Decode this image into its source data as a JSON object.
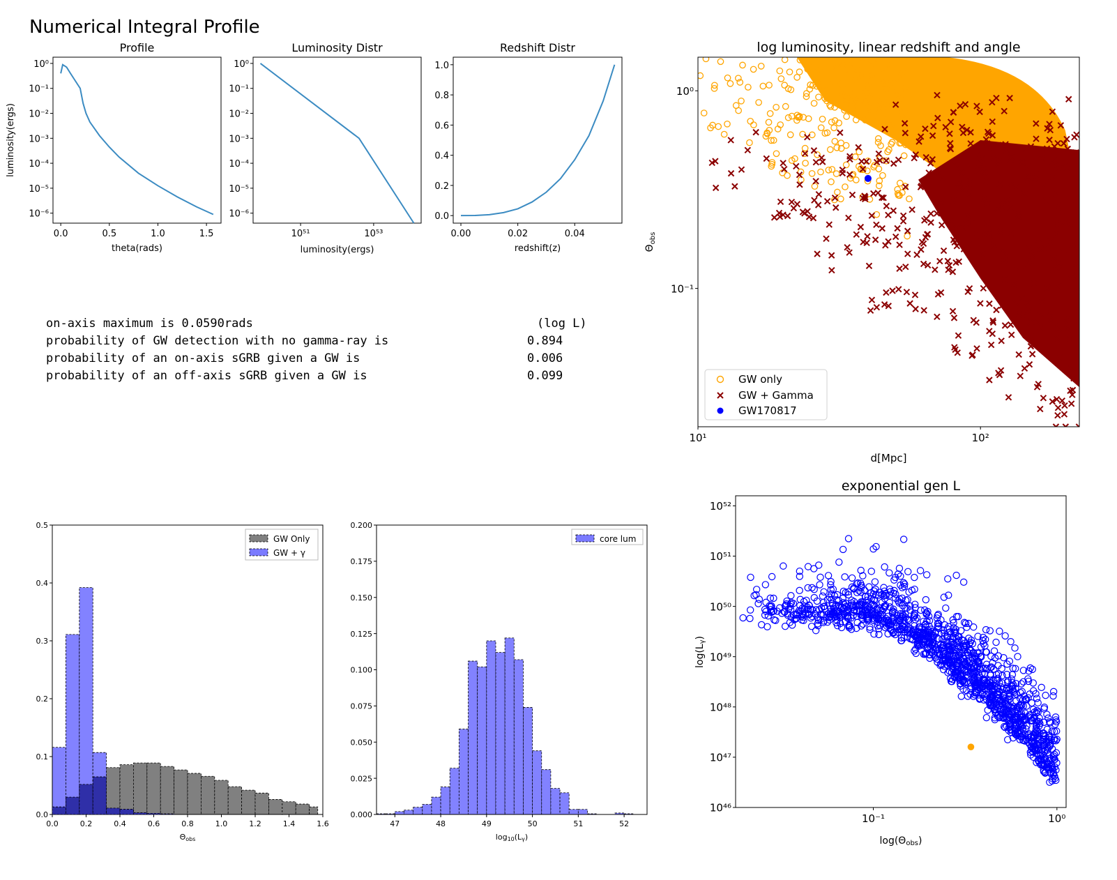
{
  "header": {
    "title": "Numerical Integral Profile"
  },
  "stats": {
    "unit_label": "(log L)",
    "lines": [
      {
        "text": "on-axis maximum is 0.0590rads",
        "value": ""
      },
      {
        "text": "probability of GW detection with no gamma-ray is",
        "value": "0.894"
      },
      {
        "text": "probability of an on-axis sGRB given a GW is",
        "value": "0.006"
      },
      {
        "text": "probability of an off-axis sGRB given a GW is",
        "value": "0.099"
      }
    ]
  },
  "colors": {
    "line": "#3b8bc2",
    "gw_only": "#ffa500",
    "gw_gamma": "#8b0000",
    "gw170817": "#0000ff",
    "hist_gray": "#808080",
    "hist_blue": "#7b7bff",
    "scatter_blue": "#0000ff",
    "marker_orange": "#ffa500"
  },
  "chart_data": [
    {
      "id": "profile",
      "type": "line",
      "title": "Profile",
      "xlabel": "theta(rads)",
      "ylabel": "luminosity(ergs)",
      "xlim": [
        -0.08,
        1.65
      ],
      "ylim_log10": [
        -6.4,
        0.25
      ],
      "yscale": "log",
      "xticks": [
        "0.0",
        "0.5",
        "1.0",
        "1.5"
      ],
      "yticks": [
        "10⁰",
        "10⁻¹",
        "10⁻²",
        "10⁻³",
        "10⁻⁴",
        "10⁻⁵",
        "10⁻⁶"
      ],
      "x": [
        0.0,
        0.02,
        0.06,
        0.1,
        0.15,
        0.2,
        0.23,
        0.26,
        0.3,
        0.4,
        0.5,
        0.6,
        0.8,
        1.0,
        1.2,
        1.4,
        1.57
      ],
      "y_log10": [
        -0.4,
        -0.05,
        -0.15,
        -0.4,
        -0.7,
        -1.0,
        -1.6,
        -2.0,
        -2.35,
        -2.9,
        -3.35,
        -3.75,
        -4.4,
        -4.9,
        -5.35,
        -5.75,
        -6.05
      ]
    },
    {
      "id": "lum",
      "type": "line",
      "title": "Luminosity Distr",
      "xlabel": "luminosity(ergs)",
      "ylabel": "",
      "xlim_log10": [
        49.7,
        54.3
      ],
      "ylim_log10": [
        -6.4,
        0.25
      ],
      "xscale": "log",
      "yscale": "log",
      "xticks": [
        "10⁵¹",
        "10⁵³"
      ],
      "yticks": [
        "10⁰",
        "10⁻¹",
        "10⁻²",
        "10⁻³",
        "10⁻⁴",
        "10⁻⁵",
        "10⁻⁶"
      ],
      "x_log10": [
        49.9,
        52.6,
        54.1
      ],
      "y_log10": [
        0.0,
        -3.0,
        -6.4
      ]
    },
    {
      "id": "redshift",
      "type": "line",
      "title": "Redshift Distr",
      "xlabel": "redshift(z)",
      "ylabel": "",
      "xlim": [
        -0.0027,
        0.0566
      ],
      "ylim": [
        -0.05,
        1.05
      ],
      "xticks": [
        "0.00",
        "0.02",
        "0.04"
      ],
      "yticks": [
        "0.0",
        "0.2",
        "0.4",
        "0.6",
        "0.8",
        "1.0"
      ],
      "x": [
        0.0,
        0.005,
        0.01,
        0.015,
        0.02,
        0.025,
        0.03,
        0.035,
        0.04,
        0.045,
        0.05,
        0.054
      ],
      "y": [
        0.0,
        0.001,
        0.006,
        0.02,
        0.045,
        0.09,
        0.155,
        0.245,
        0.37,
        0.53,
        0.76,
        1.0
      ]
    },
    {
      "id": "scatter_d_theta",
      "type": "scatter",
      "title": "log luminosity, linear redshift and angle",
      "xlabel": "d[Mpc]",
      "ylabel": "Θ_obs",
      "xlim_log10": [
        1.0,
        2.35
      ],
      "ylim_log10": [
        -1.7,
        0.17
      ],
      "xscale": "log",
      "yscale": "log",
      "xticks": [
        "10¹",
        "10²"
      ],
      "yticks": [
        "10⁰",
        "10⁻¹"
      ],
      "legend": {
        "position": "lower-left",
        "entries": [
          "GW only",
          "GW + Gamma",
          "GW170817"
        ]
      },
      "series": [
        {
          "name": "GW only",
          "marker": "open-circle",
          "note": "dense sample above the detection boundary"
        },
        {
          "name": "GW + Gamma",
          "marker": "x",
          "note": "dense sample at large distance"
        },
        {
          "name": "GW170817",
          "marker": "filled-circle",
          "x": [
            40
          ],
          "y": [
            0.36
          ]
        }
      ]
    },
    {
      "id": "hist_theta",
      "type": "bar",
      "title": "",
      "xlabel": "Θ_obs",
      "ylabel": "",
      "xlim": [
        0.0,
        1.6
      ],
      "ylim": [
        0.0,
        0.5
      ],
      "xticks": [
        "0.0",
        "0.2",
        "0.4",
        "0.6",
        "0.8",
        "1.0",
        "1.2",
        "1.4",
        "1.6"
      ],
      "yticks": [
        "0.0",
        "0.1",
        "0.2",
        "0.3",
        "0.4",
        "0.5"
      ],
      "legend": {
        "position": "top-right",
        "entries": [
          "GW Only",
          "GW + γ"
        ]
      },
      "bin_edges": [
        0.0,
        0.08,
        0.16,
        0.24,
        0.32,
        0.4,
        0.48,
        0.56,
        0.64,
        0.72,
        0.8,
        0.88,
        0.96,
        1.04,
        1.12,
        1.2,
        1.28,
        1.36,
        1.44,
        1.52,
        1.57
      ],
      "series": [
        {
          "name": "GW Only",
          "values": [
            0.013,
            0.03,
            0.052,
            0.065,
            0.081,
            0.086,
            0.089,
            0.089,
            0.083,
            0.077,
            0.071,
            0.066,
            0.059,
            0.048,
            0.042,
            0.037,
            0.026,
            0.022,
            0.018,
            0.013
          ]
        },
        {
          "name": "GW + γ",
          "values": [
            0.116,
            0.311,
            0.392,
            0.107,
            0.011,
            0.009,
            0.003,
            0.002,
            0.001,
            0.0,
            0.0,
            0.0,
            0.0,
            0.0,
            0.0,
            0.0,
            0.0,
            0.0,
            0.0,
            0.0
          ]
        }
      ]
    },
    {
      "id": "hist_lum",
      "type": "bar",
      "title": "",
      "xlabel": "log₁₀(L_γ)",
      "ylabel": "",
      "xlim": [
        46.6,
        52.5
      ],
      "ylim": [
        0.0,
        0.2
      ],
      "xticks": [
        "47",
        "48",
        "49",
        "50",
        "51",
        "52"
      ],
      "yticks": [
        "0.000",
        "0.025",
        "0.050",
        "0.075",
        "0.100",
        "0.125",
        "0.150",
        "0.175",
        "0.200"
      ],
      "legend": {
        "position": "top-right",
        "entries": [
          "core lum"
        ]
      },
      "bin_edges": [
        46.6,
        46.8,
        47.0,
        47.2,
        47.4,
        47.6,
        47.8,
        48.0,
        48.2,
        48.4,
        48.6,
        48.8,
        49.0,
        49.2,
        49.4,
        49.6,
        49.8,
        50.0,
        50.2,
        50.4,
        50.6,
        50.8,
        51.0,
        51.2,
        51.4,
        51.6,
        51.8,
        52.0,
        52.2
      ],
      "series": [
        {
          "name": "core lum",
          "values": [
            0.0005,
            0.0005,
            0.002,
            0.003,
            0.005,
            0.007,
            0.012,
            0.019,
            0.032,
            0.059,
            0.106,
            0.102,
            0.12,
            0.112,
            0.122,
            0.107,
            0.074,
            0.044,
            0.031,
            0.018,
            0.015,
            0.0035,
            0.0035,
            0.0005,
            0.0,
            0.0,
            0.001,
            0.0005
          ]
        }
      ]
    },
    {
      "id": "scatter_theta_L",
      "type": "scatter",
      "title": "exponential gen L",
      "xlabel": "log(Θ_obs)",
      "ylabel": "log(L_γ)",
      "xlim_log10": [
        -1.75,
        0.05
      ],
      "ylim_log10": [
        46.0,
        52.2
      ],
      "xscale": "log",
      "yscale": "log",
      "xticks": [
        "10⁻¹",
        "10⁰"
      ],
      "yticks": [
        "10⁵²",
        "10⁵¹",
        "10⁵⁰",
        "10⁴⁹",
        "10⁴⁸",
        "10⁴⁷",
        "10⁴⁶"
      ],
      "series": [
        {
          "name": "",
          "marker": "open-circle",
          "note": "dense sample"
        },
        {
          "name": "",
          "marker": "filled-circle",
          "x": [
            0.34
          ],
          "y": [
            1.6e+47
          ]
        }
      ]
    }
  ]
}
